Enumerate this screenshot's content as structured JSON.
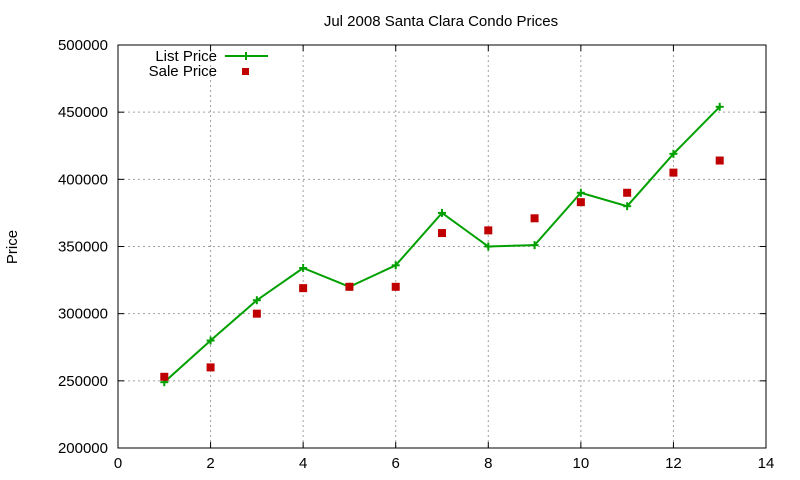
{
  "chart_data": {
    "type": "line",
    "title": "Jul 2008 Santa Clara Condo Prices",
    "xlabel": "",
    "ylabel": "Price",
    "xlim": [
      0,
      14
    ],
    "ylim": [
      200000,
      500000
    ],
    "x_ticks": [
      0,
      2,
      4,
      6,
      8,
      10,
      12,
      14
    ],
    "y_ticks": [
      200000,
      250000,
      300000,
      350000,
      400000,
      450000,
      500000
    ],
    "grid": true,
    "legend_position": "top-left",
    "series": [
      {
        "name": "List Price",
        "style": "line-points",
        "color": "#00a000",
        "x": [
          1,
          2,
          3,
          4,
          5,
          6,
          7,
          8,
          9,
          10,
          11,
          12,
          13
        ],
        "y": [
          249000,
          280000,
          310000,
          334000,
          320000,
          336000,
          375000,
          350000,
          351000,
          390000,
          380000,
          419000,
          454000
        ]
      },
      {
        "name": "Sale Price",
        "style": "points",
        "color": "#c00000",
        "x": [
          1,
          2,
          3,
          4,
          5,
          6,
          7,
          8,
          9,
          10,
          11,
          12,
          13
        ],
        "y": [
          253000,
          260000,
          300000,
          319000,
          320000,
          320000,
          360000,
          362000,
          371000,
          383000,
          390000,
          405000,
          414000
        ]
      }
    ]
  }
}
